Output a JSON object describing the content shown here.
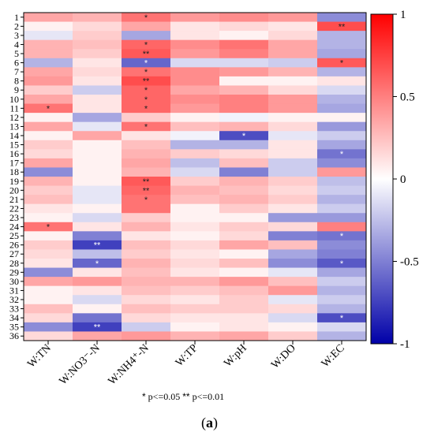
{
  "chart_data": {
    "type": "heatmap",
    "title": "",
    "xlabel": "",
    "ylabel": "",
    "columns": [
      "W:TN",
      "W:NO3⁻-N",
      "W:NH4⁺-N",
      "W:TP",
      "W:pH",
      "W:DO",
      "W:EC"
    ],
    "rows": [
      "1",
      "2",
      "3",
      "4",
      "5",
      "6",
      "7",
      "8",
      "9",
      "10",
      "11",
      "12",
      "13",
      "14",
      "15",
      "16",
      "17",
      "18",
      "19",
      "20",
      "21",
      "22",
      "23",
      "24",
      "25",
      "26",
      "27",
      "28",
      "29",
      "30",
      "31",
      "32",
      "33",
      "34",
      "35",
      "36"
    ],
    "values": [
      [
        0.35,
        0.3,
        0.55,
        0.4,
        0.45,
        0.4,
        -0.45
      ],
      [
        0.05,
        0.15,
        0.35,
        0.1,
        0.15,
        0.1,
        0.7
      ],
      [
        -0.1,
        0.2,
        -0.35,
        0.1,
        0.05,
        0.15,
        -0.3
      ],
      [
        0.3,
        0.25,
        0.6,
        0.45,
        0.55,
        0.35,
        -0.3
      ],
      [
        0.3,
        0.2,
        0.65,
        0.4,
        0.5,
        0.35,
        -0.35
      ],
      [
        -0.3,
        0.1,
        -0.6,
        -0.15,
        -0.15,
        -0.2,
        0.65
      ],
      [
        0.35,
        0.15,
        0.55,
        0.45,
        0.4,
        0.3,
        -0.3
      ],
      [
        0.4,
        0.1,
        0.7,
        0.45,
        0.05,
        0.05,
        0.1
      ],
      [
        0.2,
        -0.2,
        0.6,
        0.35,
        0.3,
        0.15,
        -0.15
      ],
      [
        0.35,
        0.1,
        0.6,
        0.45,
        0.5,
        0.4,
        -0.3
      ],
      [
        0.55,
        0.1,
        0.6,
        0.4,
        0.5,
        0.4,
        -0.35
      ],
      [
        0.05,
        -0.35,
        0.2,
        0.05,
        -0.05,
        0.05,
        0.05
      ],
      [
        0.35,
        -0.1,
        0.55,
        0.25,
        0.3,
        0.15,
        -0.4
      ],
      [
        0.05,
        0.35,
        0.1,
        -0.05,
        -0.7,
        -0.1,
        -0.2
      ],
      [
        0.2,
        0.05,
        0.25,
        -0.3,
        -0.3,
        0.1,
        -0.35
      ],
      [
        0.15,
        0.05,
        0.3,
        0.2,
        0.15,
        0.1,
        -0.55
      ],
      [
        0.35,
        0.05,
        0.35,
        -0.25,
        0.25,
        -0.2,
        -0.45
      ],
      [
        -0.45,
        0.05,
        0.3,
        -0.15,
        -0.5,
        -0.2,
        0.4
      ],
      [
        0.3,
        0.05,
        0.65,
        0.2,
        0.3,
        0.2,
        -0.25
      ],
      [
        0.2,
        -0.1,
        0.6,
        0.3,
        0.25,
        0.15,
        -0.2
      ],
      [
        0.25,
        -0.1,
        0.55,
        0.25,
        0.3,
        0.2,
        -0.3
      ],
      [
        0.1,
        0.05,
        0.55,
        0.05,
        0.2,
        0.1,
        -0.2
      ],
      [
        0.05,
        -0.15,
        0.2,
        0.05,
        0.05,
        -0.4,
        -0.4
      ],
      [
        0.55,
        0.1,
        0.3,
        0.1,
        0.2,
        0.15,
        0.5
      ],
      [
        0.05,
        -0.5,
        0.1,
        0.05,
        0.15,
        -0.5,
        -0.55
      ],
      [
        0.2,
        -0.75,
        0.25,
        0.15,
        0.35,
        0.25,
        -0.45
      ],
      [
        0.15,
        -0.25,
        0.2,
        0.1,
        0.05,
        -0.35,
        -0.5
      ],
      [
        0.1,
        -0.6,
        0.3,
        0.15,
        0.25,
        -0.45,
        -0.65
      ],
      [
        -0.45,
        0.1,
        0.25,
        0.1,
        0.05,
        -0.1,
        -0.35
      ],
      [
        0.35,
        0.4,
        0.3,
        0.3,
        0.4,
        0.25,
        -0.2
      ],
      [
        0.05,
        0.1,
        0.25,
        0.2,
        0.25,
        0.4,
        -0.3
      ],
      [
        0.05,
        -0.15,
        0.15,
        0.1,
        0.2,
        -0.1,
        -0.2
      ],
      [
        0.25,
        0.05,
        0.25,
        0.2,
        0.2,
        0.15,
        -0.3
      ],
      [
        0.15,
        -0.55,
        0.15,
        0.1,
        0.1,
        -0.15,
        -0.7
      ],
      [
        -0.45,
        -0.75,
        -0.2,
        0.05,
        0.1,
        0.05,
        -0.15
      ],
      [
        0.15,
        0.35,
        0.4,
        0.3,
        0.35,
        0.2,
        -0.3
      ]
    ],
    "significance": [
      [
        "",
        "",
        "*",
        "",
        "",
        "",
        ""
      ],
      [
        "",
        "",
        "",
        "",
        "",
        "",
        "**"
      ],
      [
        "",
        "",
        "",
        "",
        "",
        "",
        ""
      ],
      [
        "",
        "",
        "*",
        "",
        "",
        "",
        ""
      ],
      [
        "",
        "",
        "**",
        "",
        "",
        "",
        ""
      ],
      [
        "",
        "",
        "*",
        "",
        "",
        "",
        "*"
      ],
      [
        "",
        "",
        "*",
        "",
        "",
        "",
        ""
      ],
      [
        "",
        "",
        "**",
        "",
        "",
        "",
        ""
      ],
      [
        "",
        "",
        "*",
        "",
        "",
        "",
        ""
      ],
      [
        "",
        "",
        "*",
        "",
        "",
        "",
        ""
      ],
      [
        "*",
        "",
        "*",
        "",
        "",
        "",
        ""
      ],
      [
        "",
        "",
        "",
        "",
        "",
        "",
        ""
      ],
      [
        "",
        "",
        "*",
        "",
        "",
        "",
        ""
      ],
      [
        "",
        "",
        "",
        "",
        "*",
        "",
        ""
      ],
      [
        "",
        "",
        "",
        "",
        "",
        "",
        ""
      ],
      [
        "",
        "",
        "",
        "",
        "",
        "",
        "*"
      ],
      [
        "",
        "",
        "",
        "",
        "",
        "",
        ""
      ],
      [
        "",
        "",
        "",
        "",
        "",
        "",
        ""
      ],
      [
        "",
        "",
        "**",
        "",
        "",
        "",
        ""
      ],
      [
        "",
        "",
        "**",
        "",
        "",
        "",
        ""
      ],
      [
        "",
        "",
        "*",
        "",
        "",
        "",
        ""
      ],
      [
        "",
        "",
        "",
        "",
        "",
        "",
        ""
      ],
      [
        "",
        "",
        "",
        "",
        "",
        "",
        ""
      ],
      [
        "*",
        "",
        "",
        "",
        "",
        "",
        ""
      ],
      [
        "",
        "",
        "",
        "",
        "",
        "",
        "*"
      ],
      [
        "",
        "**",
        "",
        "",
        "",
        "",
        ""
      ],
      [
        "",
        "",
        "",
        "",
        "",
        "",
        ""
      ],
      [
        "",
        "*",
        "",
        "",
        "",
        "",
        "*"
      ],
      [
        "",
        "",
        "",
        "",
        "",
        "",
        ""
      ],
      [
        "",
        "",
        "",
        "",
        "",
        "",
        ""
      ],
      [
        "",
        "",
        "",
        "",
        "",
        "",
        ""
      ],
      [
        "",
        "",
        "",
        "",
        "",
        "",
        ""
      ],
      [
        "",
        "",
        "",
        "",
        "",
        "",
        ""
      ],
      [
        "",
        "",
        "",
        "",
        "",
        "",
        "*"
      ],
      [
        "",
        "**",
        "",
        "",
        "",
        "",
        ""
      ],
      [
        "",
        "",
        "",
        "",
        "",
        "",
        ""
      ]
    ],
    "colorbar": {
      "range": [
        -1,
        1
      ],
      "ticks": [
        1,
        0.5,
        0,
        -0.5,
        -1
      ],
      "tick_labels": [
        "1",
        "0.5",
        "0",
        "-0.5",
        "-1"
      ],
      "low_color": "#0000a8",
      "mid_color": "#ffffff",
      "high_color": "#ff0000"
    },
    "legend": "top-right",
    "grid": false
  },
  "note": {
    "star1": "*",
    "star1_text": " p<=0.05  ",
    "star2": "**",
    "star2_text": " p<=0.01"
  },
  "panel_label": {
    "open": "(",
    "letter": "a",
    "close": ")"
  }
}
